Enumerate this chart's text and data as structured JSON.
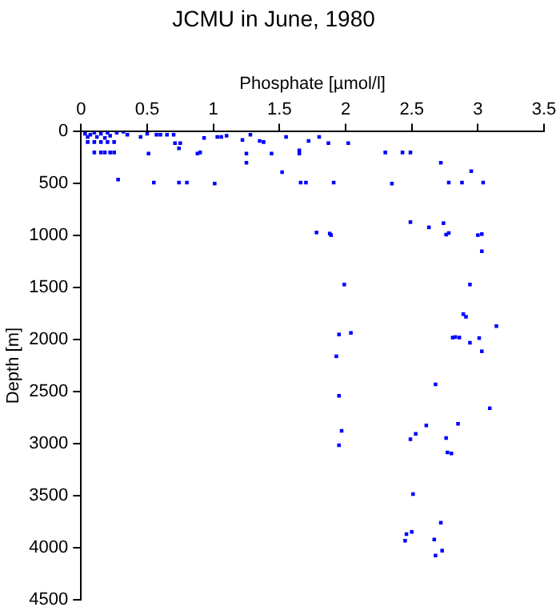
{
  "chart_data": {
    "type": "scatter",
    "title": "JCMU in June, 1980",
    "xlabel": "Phosphate [µmol/l]",
    "ylabel": "Depth [m]",
    "xlim": [
      0,
      3.5
    ],
    "xticks": [
      0,
      0.5,
      1,
      1.5,
      2,
      2.5,
      3,
      3.5
    ],
    "ylim": [
      4500,
      0
    ],
    "yticks": [
      0,
      500,
      1000,
      1500,
      2000,
      2500,
      3000,
      3500,
      4000,
      4500
    ],
    "grid": false,
    "legend": false,
    "marker": "square",
    "series": [
      {
        "color": "#0000ff",
        "x": [
          0.03,
          0.05,
          0.07,
          0.1,
          0.12,
          0.15,
          0.18,
          0.2,
          0.22,
          0.05,
          0.1,
          0.15,
          0.2,
          0.25,
          0.1,
          0.15,
          0.18,
          0.22,
          0.25,
          0.28,
          0.27,
          0.32,
          0.35,
          0.45,
          0.5,
          0.57,
          0.6,
          0.65,
          0.7,
          0.71,
          0.74,
          0.75,
          0.51,
          0.55,
          0.74,
          0.8,
          0.88,
          0.9,
          0.93,
          1.01,
          1.03,
          1.1,
          1.06,
          1.22,
          1.25,
          1.25,
          1.28,
          1.35,
          1.38,
          1.44,
          1.52,
          1.55,
          1.65,
          1.65,
          1.66,
          1.7,
          1.72,
          1.8,
          1.87,
          1.91,
          2.02,
          2.3,
          2.35,
          2.43,
          2.49,
          2.72,
          2.78,
          2.88,
          2.95,
          3.04,
          1.78,
          1.88,
          1.89,
          2.49,
          2.63,
          2.74,
          2.76,
          2.78,
          3.0,
          3.03,
          3.03,
          1.99,
          2.94,
          2.89,
          2.91,
          3.14,
          1.95,
          2.04,
          2.81,
          2.83,
          2.86,
          2.94,
          3.01,
          1.93,
          1.95,
          1.97,
          1.95,
          2.68,
          3.09,
          2.61,
          2.53,
          2.49,
          2.85,
          2.76,
          2.77,
          2.8,
          2.51,
          2.72,
          2.5,
          2.46,
          2.45,
          2.67,
          2.73,
          2.68,
          3.03
        ],
        "values": [
          20,
          50,
          30,
          10,
          50,
          20,
          60,
          10,
          40,
          100,
          100,
          100,
          100,
          100,
          200,
          200,
          200,
          200,
          200,
          460,
          10,
          0,
          30,
          50,
          20,
          30,
          30,
          30,
          30,
          110,
          160,
          110,
          210,
          490,
          490,
          490,
          210,
          200,
          60,
          500,
          50,
          40,
          50,
          80,
          210,
          300,
          30,
          90,
          100,
          210,
          390,
          50,
          180,
          210,
          490,
          490,
          90,
          50,
          110,
          490,
          110,
          200,
          500,
          200,
          200,
          300,
          490,
          490,
          380,
          490,
          970,
          980,
          995,
          870,
          920,
          880,
          990,
          975,
          995,
          985,
          1150,
          1470,
          1470,
          1755,
          1780,
          1870,
          1950,
          1935,
          1980,
          1975,
          1980,
          2030,
          1985,
          2160,
          2540,
          2877,
          3015,
          2430,
          2660,
          2825,
          2905,
          2957,
          2809,
          2946,
          3084,
          3094,
          3485,
          3760,
          3849,
          3870,
          3933,
          3922,
          4029,
          4076,
          2112
        ]
      }
    ]
  }
}
